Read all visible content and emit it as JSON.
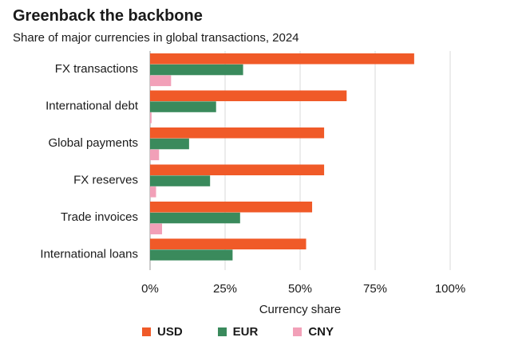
{
  "header": {
    "title": "Greenback the backbone",
    "subtitle": "Share of major currencies in global transactions, 2024"
  },
  "chart_data": {
    "type": "bar",
    "orientation": "horizontal",
    "title": "Greenback the backbone",
    "subtitle": "Share of major currencies in global transactions, 2024",
    "categories": [
      "FX transactions",
      "International debt",
      "Global payments",
      "FX reserves",
      "Trade invoices",
      "International loans"
    ],
    "series": [
      {
        "name": "USD",
        "color": "#f05a28",
        "values": [
          88,
          65.5,
          58,
          58,
          54,
          52
        ]
      },
      {
        "name": "EUR",
        "color": "#3a8a5c",
        "values": [
          31,
          22,
          13,
          20,
          30,
          27.5
        ]
      },
      {
        "name": "CNY",
        "color": "#f2a0b8",
        "values": [
          7,
          0.5,
          3,
          2,
          4,
          0
        ]
      }
    ],
    "xlabel": "Currency share",
    "ylabel": "",
    "xlim": [
      0,
      100
    ],
    "xticks": [
      0,
      25,
      50,
      75,
      100
    ],
    "xtick_labels": [
      "0%",
      "25%",
      "50%",
      "75%",
      "100%"
    ],
    "grid": true,
    "legend": "bottom"
  }
}
